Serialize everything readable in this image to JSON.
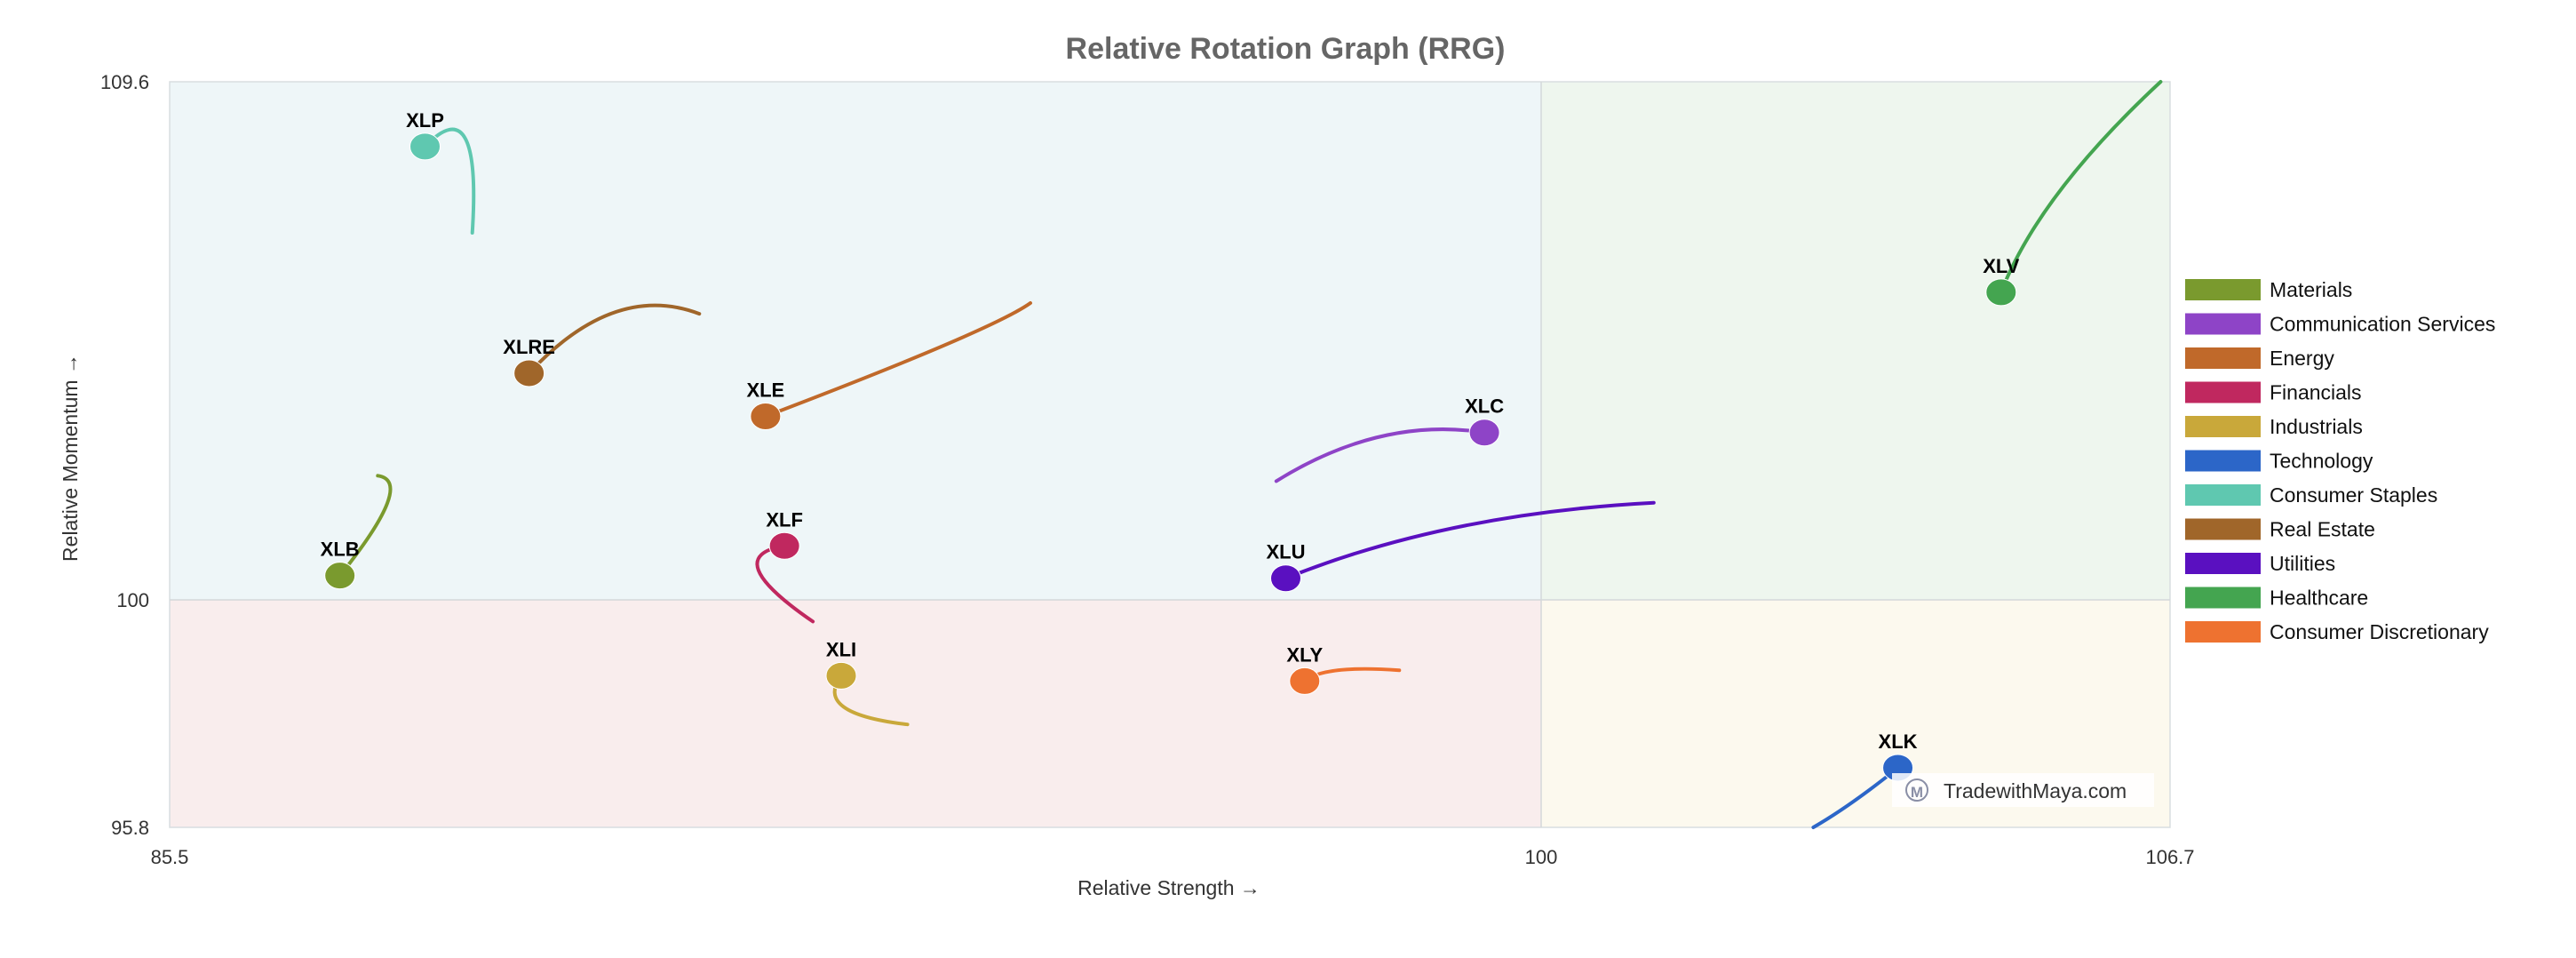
{
  "chart_data": {
    "type": "scatter",
    "title": "Relative Rotation Graph (RRG)",
    "xlabel": "Relative Strength →",
    "ylabel": "Relative Momentum →",
    "xlim": [
      85.5,
      106.7
    ],
    "ylim": [
      95.8,
      109.6
    ],
    "x_ticks": [
      "85.5",
      "100",
      "106.7"
    ],
    "y_ticks": [
      "109.6",
      "100",
      "95.8"
    ],
    "center": {
      "x": 100,
      "y": 100
    },
    "quadrant_colors": {
      "top_left": "#eef6f8",
      "top_right": "#eef6ee",
      "bottom_left": "#f9eded",
      "bottom_right": "#fcf9ee"
    },
    "legend_position": "right",
    "series": [
      {
        "name": "Materials",
        "symbol": "XLB",
        "color": "#7a9a2e",
        "tail": [
          [
            87.7,
            102.3
          ],
          [
            88.1,
            102.2
          ]
        ],
        "head": [
          87.3,
          100.45
        ]
      },
      {
        "name": "Communication Services",
        "symbol": "XLC",
        "color": "#8e44c7",
        "tail": [
          [
            97.2,
            102.2
          ],
          [
            98.3,
            103.4
          ]
        ],
        "head": [
          99.4,
          103.1
        ]
      },
      {
        "name": "Energy",
        "symbol": "XLE",
        "color": "#c0692a",
        "tail": [
          [
            94.6,
            105.5
          ],
          [
            94.2,
            105.0
          ]
        ],
        "head": [
          91.8,
          103.4
        ]
      },
      {
        "name": "Financials",
        "symbol": "XLF",
        "color": "#c0285f",
        "tail": [
          [
            92.3,
            99.6
          ],
          [
            91.3,
            100.8
          ]
        ],
        "head": [
          92.0,
          101.0
        ]
      },
      {
        "name": "Industrials",
        "symbol": "XLI",
        "color": "#c9a83a",
        "tail": [
          [
            93.3,
            97.7
          ],
          [
            92.3,
            97.9
          ]
        ],
        "head": [
          92.6,
          98.6
        ]
      },
      {
        "name": "Technology",
        "symbol": "XLK",
        "color": "#2c66c8",
        "tail": [
          [
            102.9,
            95.8
          ],
          [
            103.3,
            96.2
          ]
        ],
        "head": [
          103.8,
          96.9
        ]
      },
      {
        "name": "Consumer Staples",
        "symbol": "XLP",
        "color": "#5fc8b0",
        "tail": [
          [
            88.7,
            106.8
          ],
          [
            88.8,
            109.5
          ]
        ],
        "head": [
          88.2,
          108.4
        ]
      },
      {
        "name": "Real Estate",
        "symbol": "XLRE",
        "color": "#a0662a",
        "tail": [
          [
            91.1,
            105.3
          ],
          [
            90.2,
            105.9
          ]
        ],
        "head": [
          89.3,
          104.2
        ]
      },
      {
        "name": "Utilities",
        "symbol": "XLU",
        "color": "#5a10c0",
        "tail": [
          [
            101.2,
            101.8
          ],
          [
            99.0,
            101.6
          ]
        ],
        "head": [
          97.3,
          100.4
        ]
      },
      {
        "name": "Healthcare",
        "symbol": "XLV",
        "color": "#44a550",
        "tail": [
          [
            106.6,
            109.6
          ],
          [
            105.3,
            107.5
          ]
        ],
        "head": [
          104.9,
          105.7
        ]
      },
      {
        "name": "Consumer Discretionary",
        "symbol": "XLY",
        "color": "#ee7230",
        "tail": [
          [
            98.5,
            98.7
          ],
          [
            97.7,
            98.8
          ]
        ],
        "head": [
          97.5,
          98.5
        ]
      }
    ]
  },
  "watermark": {
    "text": "TradewithMaya.com",
    "icon": "m-circle-icon"
  }
}
